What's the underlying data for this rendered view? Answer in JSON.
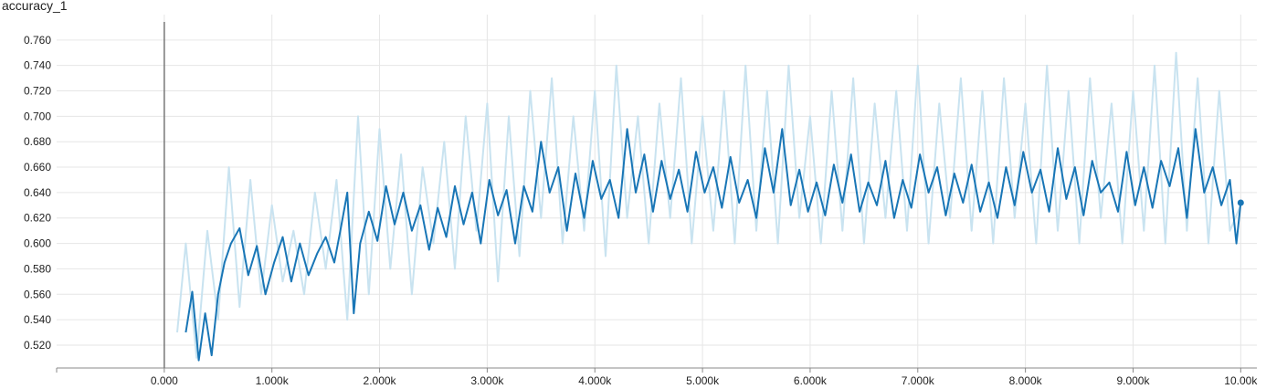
{
  "chart_data": {
    "type": "line",
    "title": "accuracy_1",
    "xlabel": "",
    "ylabel": "",
    "xlim": [
      -1000,
      10150
    ],
    "ylim": [
      0.502,
      0.78
    ],
    "grid": true,
    "x_ticks": [
      0,
      1000,
      2000,
      3000,
      4000,
      5000,
      6000,
      7000,
      8000,
      9000,
      10000
    ],
    "x_tick_labels": [
      "0.000",
      "1.000k",
      "2.000k",
      "3.000k",
      "4.000k",
      "5.000k",
      "6.000k",
      "7.000k",
      "8.000k",
      "9.000k",
      "10.00k"
    ],
    "y_ticks": [
      0.52,
      0.54,
      0.56,
      0.58,
      0.6,
      0.62,
      0.64,
      0.66,
      0.68,
      0.7,
      0.72,
      0.74,
      0.76
    ],
    "y_tick_labels": [
      "0.520",
      "0.540",
      "0.560",
      "0.580",
      "0.600",
      "0.620",
      "0.640",
      "0.660",
      "0.680",
      "0.700",
      "0.720",
      "0.740",
      "0.760"
    ],
    "colors": {
      "smoothed": "#1976b6",
      "raw": "#c9e3f0",
      "grid": "#e6e6e6",
      "axis": "#888888"
    },
    "series": [
      {
        "role": "raw",
        "x": [
          120,
          200,
          300,
          400,
          500,
          600,
          700,
          800,
          900,
          1000,
          1100,
          1200,
          1300,
          1400,
          1500,
          1600,
          1700,
          1800,
          1900,
          2000,
          2100,
          2200,
          2300,
          2400,
          2500,
          2600,
          2700,
          2800,
          2900,
          3000,
          3100,
          3200,
          3300,
          3400,
          3500,
          3600,
          3700,
          3800,
          3900,
          4000,
          4100,
          4200,
          4300,
          4400,
          4500,
          4600,
          4700,
          4800,
          4900,
          5000,
          5100,
          5200,
          5300,
          5400,
          5500,
          5600,
          5700,
          5800,
          5900,
          6000,
          6100,
          6200,
          6300,
          6400,
          6500,
          6600,
          6700,
          6800,
          6900,
          7000,
          7100,
          7200,
          7300,
          7400,
          7500,
          7600,
          7700,
          7800,
          7900,
          8000,
          8100,
          8200,
          8300,
          8400,
          8500,
          8600,
          8700,
          8800,
          8900,
          9000,
          9100,
          9200,
          9300,
          9400,
          9500,
          9600,
          9700,
          9800,
          9900,
          10000
        ],
        "y": [
          0.53,
          0.6,
          0.51,
          0.61,
          0.54,
          0.66,
          0.55,
          0.65,
          0.56,
          0.63,
          0.57,
          0.61,
          0.56,
          0.64,
          0.58,
          0.65,
          0.54,
          0.7,
          0.56,
          0.69,
          0.58,
          0.67,
          0.56,
          0.66,
          0.6,
          0.68,
          0.58,
          0.7,
          0.61,
          0.71,
          0.57,
          0.7,
          0.59,
          0.72,
          0.62,
          0.73,
          0.6,
          0.7,
          0.61,
          0.72,
          0.59,
          0.74,
          0.62,
          0.7,
          0.6,
          0.71,
          0.62,
          0.73,
          0.6,
          0.7,
          0.61,
          0.72,
          0.6,
          0.74,
          0.61,
          0.72,
          0.6,
          0.74,
          0.62,
          0.7,
          0.6,
          0.72,
          0.61,
          0.73,
          0.6,
          0.71,
          0.62,
          0.72,
          0.61,
          0.74,
          0.6,
          0.71,
          0.62,
          0.73,
          0.61,
          0.72,
          0.6,
          0.73,
          0.62,
          0.71,
          0.6,
          0.74,
          0.61,
          0.72,
          0.6,
          0.73,
          0.62,
          0.71,
          0.6,
          0.72,
          0.61,
          0.74,
          0.6,
          0.75,
          0.61,
          0.73,
          0.6,
          0.72,
          0.61,
          0.63
        ]
      },
      {
        "role": "smoothed",
        "x": [
          200,
          260,
          320,
          380,
          440,
          500,
          560,
          620,
          700,
          780,
          860,
          940,
          1020,
          1100,
          1180,
          1260,
          1340,
          1420,
          1500,
          1580,
          1640,
          1700,
          1760,
          1820,
          1900,
          1980,
          2060,
          2140,
          2220,
          2300,
          2380,
          2460,
          2540,
          2620,
          2700,
          2780,
          2860,
          2940,
          3020,
          3100,
          3180,
          3260,
          3340,
          3420,
          3500,
          3580,
          3660,
          3740,
          3820,
          3900,
          3980,
          4060,
          4140,
          4220,
          4300,
          4380,
          4460,
          4540,
          4620,
          4700,
          4780,
          4860,
          4940,
          5020,
          5100,
          5180,
          5260,
          5340,
          5420,
          5500,
          5580,
          5660,
          5740,
          5820,
          5900,
          5980,
          6060,
          6140,
          6220,
          6300,
          6380,
          6460,
          6540,
          6620,
          6700,
          6780,
          6860,
          6940,
          7020,
          7100,
          7180,
          7260,
          7340,
          7420,
          7500,
          7580,
          7660,
          7740,
          7820,
          7900,
          7980,
          8060,
          8140,
          8220,
          8300,
          8380,
          8460,
          8540,
          8620,
          8700,
          8780,
          8860,
          8940,
          9020,
          9100,
          9180,
          9260,
          9340,
          9420,
          9500,
          9580,
          9660,
          9740,
          9820,
          9900,
          9960,
          10000
        ],
        "y": [
          0.53,
          0.562,
          0.508,
          0.545,
          0.512,
          0.56,
          0.585,
          0.6,
          0.612,
          0.575,
          0.598,
          0.56,
          0.585,
          0.605,
          0.57,
          0.6,
          0.575,
          0.592,
          0.605,
          0.585,
          0.612,
          0.64,
          0.545,
          0.6,
          0.625,
          0.602,
          0.645,
          0.615,
          0.64,
          0.61,
          0.63,
          0.595,
          0.628,
          0.605,
          0.645,
          0.615,
          0.64,
          0.6,
          0.65,
          0.622,
          0.642,
          0.6,
          0.645,
          0.625,
          0.68,
          0.64,
          0.66,
          0.61,
          0.655,
          0.62,
          0.665,
          0.635,
          0.65,
          0.62,
          0.69,
          0.64,
          0.67,
          0.625,
          0.665,
          0.635,
          0.658,
          0.625,
          0.672,
          0.64,
          0.66,
          0.628,
          0.668,
          0.632,
          0.65,
          0.62,
          0.675,
          0.64,
          0.69,
          0.63,
          0.658,
          0.625,
          0.648,
          0.622,
          0.662,
          0.632,
          0.67,
          0.625,
          0.648,
          0.63,
          0.665,
          0.62,
          0.65,
          0.628,
          0.67,
          0.64,
          0.66,
          0.622,
          0.655,
          0.632,
          0.662,
          0.625,
          0.648,
          0.62,
          0.66,
          0.63,
          0.672,
          0.64,
          0.658,
          0.625,
          0.675,
          0.635,
          0.66,
          0.622,
          0.665,
          0.64,
          0.648,
          0.625,
          0.672,
          0.63,
          0.66,
          0.628,
          0.665,
          0.645,
          0.675,
          0.62,
          0.69,
          0.64,
          0.66,
          0.63,
          0.65,
          0.6,
          0.632
        ]
      }
    ]
  }
}
